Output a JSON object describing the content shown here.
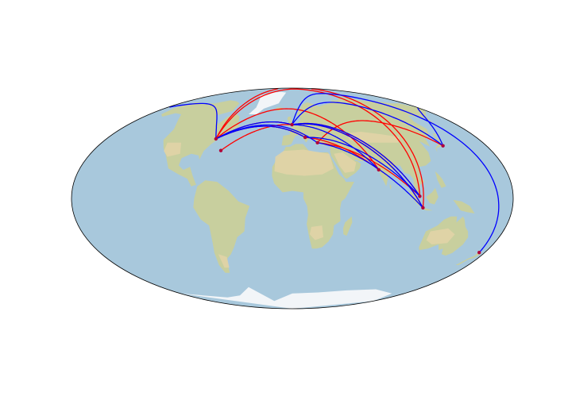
{
  "map": {
    "projection": "mollweide",
    "background": "shaded-relief",
    "colors": {
      "ocean": "#a8c8dc",
      "land": "#c8cf9e",
      "desert": "#e3d3a7",
      "ice": "#f2f5f8",
      "outline": "#000000",
      "route_red": "#ff0000",
      "route_blue": "#0000ff",
      "airport": "#b0003a"
    },
    "airports": [
      {
        "id": "ny",
        "lon": -74.0,
        "lat": 40.7
      },
      {
        "id": "bermuda",
        "lon": -64.7,
        "lat": 32.3
      },
      {
        "id": "london",
        "lon": -0.4,
        "lat": 51.5
      },
      {
        "id": "rome",
        "lon": 12.5,
        "lat": 41.8
      },
      {
        "id": "athens",
        "lon": 23.7,
        "lat": 37.9
      },
      {
        "id": "mumbai",
        "lon": 72.9,
        "lat": 19.1
      },
      {
        "id": "singapore",
        "lon": 103.9,
        "lat": 1.4
      },
      {
        "id": "jakarta",
        "lon": 106.8,
        "lat": -6.2
      },
      {
        "id": "tokyo",
        "lon": 139.7,
        "lat": 35.7
      },
      {
        "id": "auckland",
        "lon": 174.8,
        "lat": -36.8
      }
    ],
    "routes": [
      {
        "color": "red",
        "from": "ny",
        "to": "london"
      },
      {
        "color": "red",
        "from": "ny",
        "to": "rome"
      },
      {
        "color": "red",
        "from": "ny",
        "to": "singapore"
      },
      {
        "color": "red",
        "from": "ny",
        "to": "jakarta"
      },
      {
        "color": "red",
        "from": "ny",
        "to": "mumbai"
      },
      {
        "color": "red",
        "from": "bermuda",
        "to": "london"
      },
      {
        "color": "red",
        "from": "london",
        "to": "singapore"
      },
      {
        "color": "red",
        "from": "london",
        "to": "jakarta"
      },
      {
        "color": "red",
        "from": "rome",
        "to": "mumbai"
      },
      {
        "color": "red",
        "from": "athens",
        "to": "tokyo"
      },
      {
        "color": "red",
        "from": "athens",
        "to": "singapore"
      },
      {
        "color": "blue",
        "from": "ny",
        "to": "london"
      },
      {
        "color": "blue",
        "from": "ny",
        "to": "rome"
      },
      {
        "color": "blue",
        "from": "ny",
        "to": "tokyo"
      },
      {
        "color": "blue",
        "from": "london",
        "to": "tokyo"
      },
      {
        "color": "blue",
        "from": "london",
        "to": "jakarta"
      },
      {
        "color": "blue",
        "from": "london",
        "to": "mumbai"
      },
      {
        "color": "blue",
        "from": "london",
        "to": "singapore"
      },
      {
        "color": "blue",
        "from": "london",
        "to": "auckland"
      },
      {
        "color": "blue",
        "from": "rome",
        "to": "singapore"
      },
      {
        "color": "blue",
        "from": "athens",
        "to": "jakarta"
      },
      {
        "color": "blue",
        "from": "ny",
        "to": "athens"
      }
    ]
  }
}
